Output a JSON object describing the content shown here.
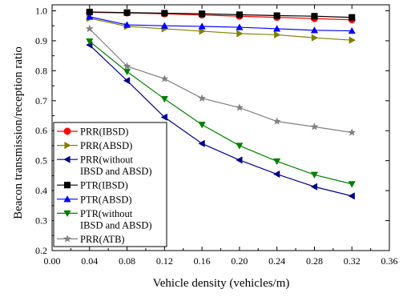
{
  "chart_data": {
    "type": "line",
    "xlabel": "Vehicle density (vehicles/m)",
    "ylabel": "Beacon transmission/reception ratio",
    "xlim": [
      0.0,
      0.36
    ],
    "ylim": [
      0.2,
      1.02
    ],
    "xticks": [
      0.0,
      0.04,
      0.08,
      0.12,
      0.16,
      0.2,
      0.24,
      0.28,
      0.32,
      0.36
    ],
    "xtick_labels": [
      "0.00",
      "0.04",
      "0.08",
      "0.12",
      "0.16",
      "0.20",
      "0.24",
      "0.28",
      "0.32",
      "0.36"
    ],
    "yticks": [
      0.2,
      0.3,
      0.4,
      0.5,
      0.6,
      0.7,
      0.8,
      0.9,
      1.0
    ],
    "ytick_labels": [
      "0.2",
      "0.3",
      "0.4",
      "0.5",
      "0.6",
      "0.7",
      "0.8",
      "0.9",
      "1.0"
    ],
    "grid": false,
    "legend_position": "bottom-left",
    "x": [
      0.04,
      0.08,
      0.12,
      0.16,
      0.2,
      0.24,
      0.28,
      0.32
    ],
    "series": [
      {
        "name": "PRR(IBSD)",
        "legend_lines": [
          "PRR(IBSD)"
        ],
        "color": "#ff0000",
        "marker": "circle",
        "values": [
          0.995,
          0.993,
          0.99,
          0.986,
          0.982,
          0.978,
          0.974,
          0.97
        ]
      },
      {
        "name": "PRR(ABSD)",
        "legend_lines": [
          "PRR(ABSD)"
        ],
        "color": "#808000",
        "marker": "triangle-right",
        "values": [
          0.975,
          0.948,
          0.94,
          0.932,
          0.924,
          0.92,
          0.91,
          0.902
        ]
      },
      {
        "name": "PRR(without IBSD and ABSD)",
        "legend_lines": [
          "PRR(without",
          "IBSD and ABSD)"
        ],
        "color": "#00008b",
        "marker": "triangle-left",
        "values": [
          0.886,
          0.767,
          0.645,
          0.557,
          0.502,
          0.455,
          0.413,
          0.382
        ]
      },
      {
        "name": "PTR(IBSD)",
        "legend_lines": [
          "PTR(IBSD)"
        ],
        "color": "#000000",
        "marker": "square",
        "values": [
          0.996,
          0.994,
          0.992,
          0.99,
          0.987,
          0.984,
          0.982,
          0.978
        ]
      },
      {
        "name": "PTR(ABSD)",
        "legend_lines": [
          "PTR(ABSD)"
        ],
        "color": "#0000ff",
        "marker": "triangle-up",
        "values": [
          0.98,
          0.953,
          0.95,
          0.948,
          0.945,
          0.94,
          0.935,
          0.933
        ]
      },
      {
        "name": "PTR(without IBSD and ABSD)",
        "legend_lines": [
          "PTR(without",
          "IBSD and ABSD)"
        ],
        "color": "#008000",
        "marker": "triangle-down",
        "values": [
          0.898,
          0.797,
          0.706,
          0.62,
          0.55,
          0.498,
          0.453,
          0.422
        ]
      },
      {
        "name": "PRR(ATB)",
        "legend_lines": [
          "PRR(ATB)"
        ],
        "color": "#808080",
        "marker": "star",
        "values": [
          0.94,
          0.815,
          0.773,
          0.708,
          0.677,
          0.631,
          0.613,
          0.594
        ]
      }
    ]
  }
}
